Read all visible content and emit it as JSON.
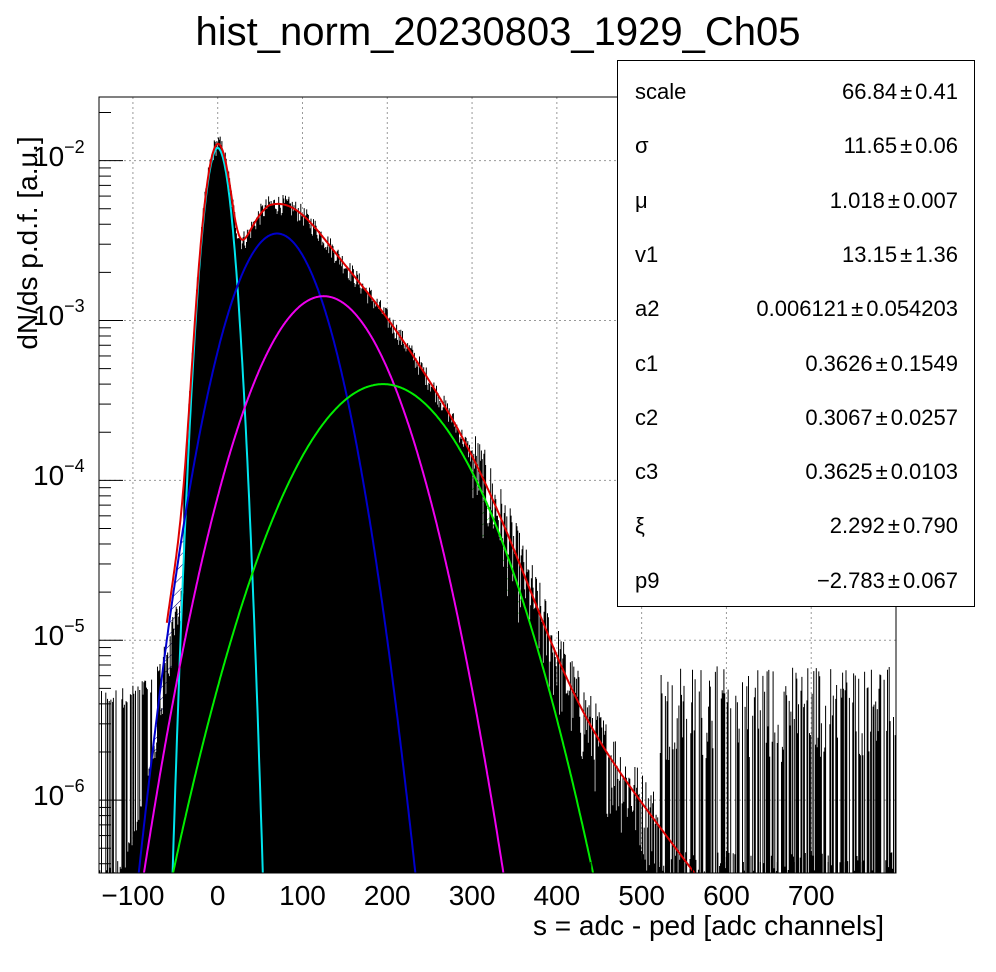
{
  "chart_data": {
    "type": "line",
    "title": "hist_norm_20230803_1929_Ch05",
    "xlabel": "s = adc - ped [adc channels]",
    "ylabel": "dN/ds p.d.f. [a.u.]",
    "xlim": [
      -140,
      800
    ],
    "ylim": [
      3.5e-07,
      0.025
    ],
    "yscale": "log",
    "grid": true,
    "x_ticks": [
      "−100",
      "0",
      "100",
      "200",
      "300",
      "400",
      "500",
      "600",
      "700"
    ],
    "x_tick_values": [
      -100,
      0,
      100,
      200,
      300,
      400,
      500,
      600,
      700
    ],
    "y_ticks": [
      {
        "base": "10",
        "exp": "−2",
        "value": 0.01
      },
      {
        "base": "10",
        "exp": "−3",
        "value": 0.001
      },
      {
        "base": "10",
        "exp": "−4",
        "value": 0.0001
      },
      {
        "base": "10",
        "exp": "−5",
        "value": 1e-05
      },
      {
        "base": "10",
        "exp": "−6",
        "value": 1e-06
      }
    ],
    "series": [
      {
        "color": "#00e5ee",
        "mu": 0,
        "sigma": 11.65,
        "peak": 0.012,
        "role": "pedestal component"
      },
      {
        "color": "#0000cc",
        "mu": 70,
        "sigma": 38,
        "peak": 0.0035,
        "role": "1 p.e. component"
      },
      {
        "color": "#ee00ee",
        "mu": 125,
        "sigma": 52,
        "peak": 0.00142,
        "role": "2 p.e. component"
      },
      {
        "color": "#00ee00",
        "mu": 195,
        "sigma": 66,
        "peak": 0.0004,
        "role": "3 p.e. component"
      },
      {
        "color": "#dd0000",
        "role": "total fit"
      },
      {
        "color": "#000000",
        "role": "data histogram"
      }
    ],
    "stats_box": [
      {
        "name": "scale",
        "value": "66.84",
        "error": "0.41"
      },
      {
        "name": "σ",
        "value": "11.65",
        "error": "0.06"
      },
      {
        "name": "μ",
        "value": "1.018",
        "error": "0.007"
      },
      {
        "name": "v1",
        "value": "13.15",
        "error": "1.36"
      },
      {
        "name": "a2",
        "value": "0.006121",
        "error": "0.054203"
      },
      {
        "name": "c1",
        "value": "0.3626",
        "error": "0.1549"
      },
      {
        "name": "c2",
        "value": "0.3067",
        "error": "0.0257"
      },
      {
        "name": "c3",
        "value": "0.3625",
        "error": "0.0103"
      },
      {
        "name": "ξ",
        "value": "2.292",
        "error": "0.790"
      },
      {
        "name": "p9",
        "value": "−2.783",
        "error": "0.067"
      }
    ],
    "pm_symbol": "±"
  }
}
